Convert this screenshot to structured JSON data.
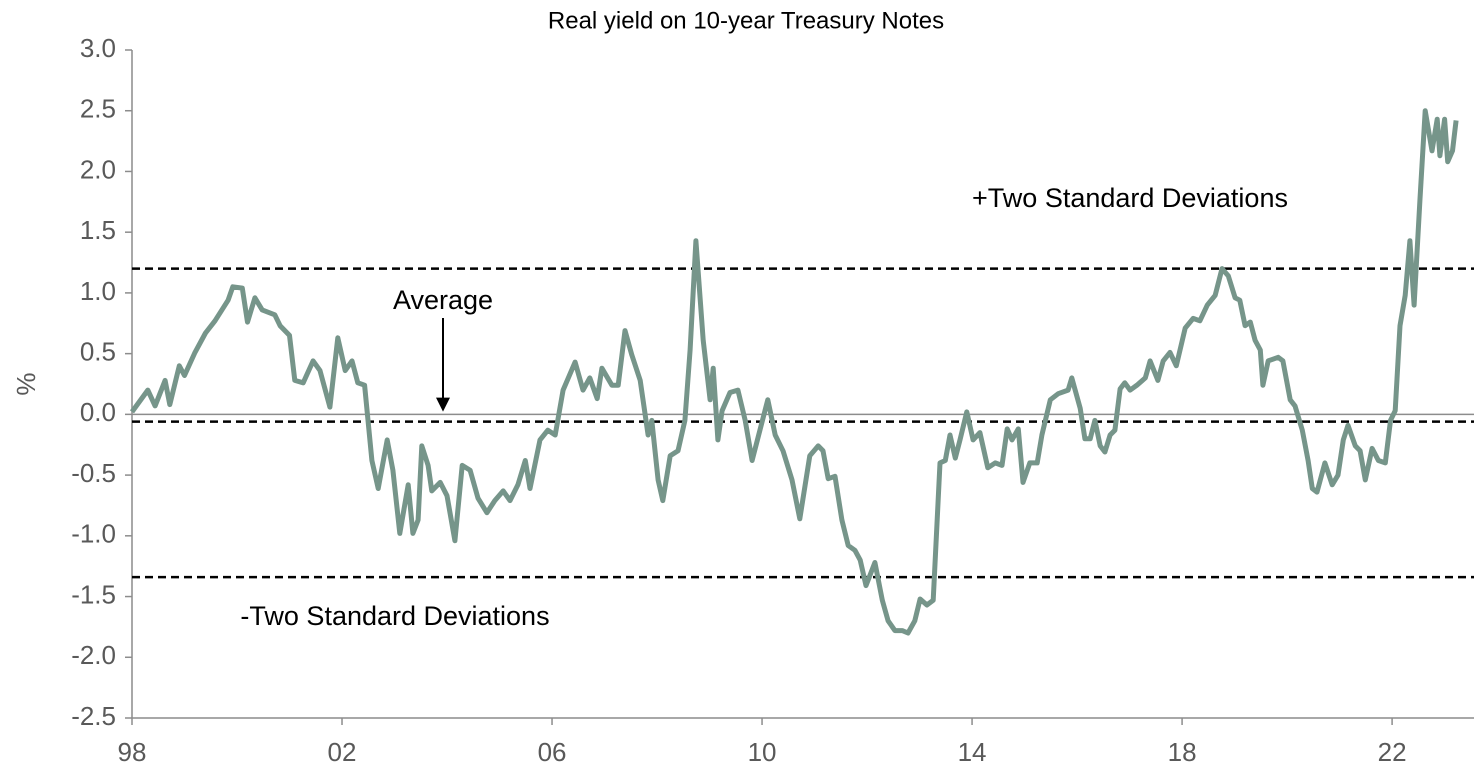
{
  "chart_data": {
    "type": "line",
    "title": "Real yield on 10-year Treasury Notes",
    "y_label": "%",
    "x": [
      1998.0,
      1998.3,
      1998.44,
      1998.63,
      1998.72,
      1998.9,
      1999.0,
      1999.2,
      1999.4,
      1999.58,
      1999.83,
      1999.92,
      2000.1,
      2000.2,
      2000.34,
      2000.48,
      2000.72,
      2000.82,
      2001.0,
      2001.1,
      2001.26,
      2001.45,
      2001.58,
      2001.77,
      2001.92,
      2002.06,
      2002.19,
      2002.3,
      2002.43,
      2002.57,
      2002.69,
      2002.86,
      2002.97,
      2003.1,
      2003.26,
      2003.35,
      2003.45,
      2003.52,
      2003.64,
      2003.71,
      2003.87,
      2004.0,
      2004.15,
      2004.29,
      2004.44,
      2004.59,
      2004.76,
      2004.91,
      2005.07,
      2005.2,
      2005.35,
      2005.49,
      2005.58,
      2005.77,
      2005.92,
      2006.06,
      2006.21,
      2006.44,
      2006.59,
      2006.72,
      2006.86,
      2006.95,
      2007.14,
      2007.26,
      2007.39,
      2007.52,
      2007.68,
      2007.83,
      2007.9,
      2008.02,
      2008.11,
      2008.25,
      2008.4,
      2008.53,
      2008.63,
      2008.74,
      2008.88,
      2009.01,
      2009.07,
      2009.16,
      2009.24,
      2009.39,
      2009.54,
      2009.68,
      2009.81,
      2009.96,
      2010.11,
      2010.25,
      2010.4,
      2010.57,
      2010.72,
      2010.91,
      2011.07,
      2011.16,
      2011.26,
      2011.39,
      2011.52,
      2011.64,
      2011.77,
      2011.87,
      2011.98,
      2012.15,
      2012.29,
      2012.4,
      2012.53,
      2012.67,
      2012.78,
      2012.91,
      2013.01,
      2013.14,
      2013.26,
      2013.39,
      2013.49,
      2013.58,
      2013.68,
      2013.77,
      2013.9,
      2014.02,
      2014.15,
      2014.3,
      2014.44,
      2014.57,
      2014.67,
      2014.76,
      2014.88,
      2014.97,
      2015.1,
      2015.24,
      2015.33,
      2015.49,
      2015.64,
      2015.83,
      2015.9,
      2016.06,
      2016.15,
      2016.25,
      2016.34,
      2016.44,
      2016.53,
      2016.63,
      2016.72,
      2016.82,
      2016.91,
      2017.01,
      2017.14,
      2017.3,
      2017.39,
      2017.54,
      2017.64,
      2017.77,
      2017.89,
      2018.06,
      2018.21,
      2018.34,
      2018.48,
      2018.63,
      2018.76,
      2018.88,
      2019.01,
      2019.1,
      2019.2,
      2019.3,
      2019.39,
      2019.49,
      2019.54,
      2019.64,
      2019.83,
      2019.92,
      2020.06,
      2020.15,
      2020.29,
      2020.4,
      2020.48,
      2020.57,
      2020.72,
      2020.86,
      2020.97,
      2021.07,
      2021.16,
      2021.3,
      2021.39,
      2021.49,
      2021.62,
      2021.74,
      2021.87,
      2021.97,
      2022.06,
      2022.15,
      2022.25,
      2022.34,
      2022.42,
      2022.53,
      2022.63,
      2022.76,
      2022.86,
      2022.91,
      2023.0,
      2023.06,
      2023.15,
      2023.22
    ],
    "series": [
      {
        "color": "#76958a",
        "values": [
          0.02,
          0.2,
          0.07,
          0.28,
          0.08,
          0.4,
          0.32,
          0.51,
          0.67,
          0.77,
          0.94,
          1.05,
          1.04,
          0.76,
          0.96,
          0.86,
          0.82,
          0.73,
          0.65,
          0.28,
          0.26,
          0.44,
          0.36,
          0.06,
          0.63,
          0.36,
          0.44,
          0.26,
          0.24,
          -0.38,
          -0.61,
          -0.21,
          -0.46,
          -0.98,
          -0.58,
          -0.98,
          -0.87,
          -0.26,
          -0.42,
          -0.63,
          -0.56,
          -0.67,
          -1.04,
          -0.42,
          -0.46,
          -0.69,
          -0.81,
          -0.71,
          -0.63,
          -0.71,
          -0.58,
          -0.38,
          -0.61,
          -0.21,
          -0.13,
          -0.17,
          0.2,
          0.43,
          0.2,
          0.3,
          0.13,
          0.38,
          0.24,
          0.24,
          0.69,
          0.49,
          0.28,
          -0.17,
          -0.05,
          -0.54,
          -0.71,
          -0.34,
          -0.3,
          -0.05,
          0.53,
          1.43,
          0.61,
          0.12,
          0.38,
          -0.21,
          0.03,
          0.18,
          0.2,
          -0.05,
          -0.38,
          -0.13,
          0.12,
          -0.17,
          -0.3,
          -0.54,
          -0.86,
          -0.34,
          -0.26,
          -0.3,
          -0.53,
          -0.51,
          -0.87,
          -1.08,
          -1.12,
          -1.2,
          -1.41,
          -1.22,
          -1.53,
          -1.7,
          -1.78,
          -1.78,
          -1.8,
          -1.7,
          -1.52,
          -1.57,
          -1.53,
          -0.4,
          -0.38,
          -0.17,
          -0.36,
          -0.21,
          0.02,
          -0.21,
          -0.15,
          -0.44,
          -0.4,
          -0.42,
          -0.12,
          -0.21,
          -0.12,
          -0.56,
          -0.4,
          -0.4,
          -0.17,
          0.12,
          0.17,
          0.2,
          0.3,
          0.05,
          -0.2,
          -0.2,
          -0.05,
          -0.26,
          -0.31,
          -0.17,
          -0.13,
          0.21,
          0.26,
          0.2,
          0.24,
          0.3,
          0.44,
          0.28,
          0.44,
          0.51,
          0.4,
          0.71,
          0.79,
          0.77,
          0.9,
          0.98,
          1.2,
          1.14,
          0.96,
          0.94,
          0.73,
          0.76,
          0.61,
          0.53,
          0.24,
          0.44,
          0.47,
          0.44,
          0.12,
          0.07,
          -0.13,
          -0.38,
          -0.61,
          -0.64,
          -0.4,
          -0.58,
          -0.5,
          -0.21,
          -0.09,
          -0.26,
          -0.3,
          -0.54,
          -0.28,
          -0.38,
          -0.4,
          -0.05,
          0.03,
          0.73,
          0.98,
          1.43,
          0.9,
          1.76,
          2.5,
          2.17,
          2.43,
          2.13,
          2.43,
          2.08,
          2.17,
          2.42
        ]
      }
    ],
    "hlines": [
      {
        "label": "+Two Standard Deviations",
        "value": 1.2
      },
      {
        "label": "Average",
        "value": -0.06
      },
      {
        "label": "-Two Standard Deviations",
        "value": -1.34
      }
    ],
    "xlim": [
      1998,
      2023.56
    ],
    "xticks": [
      {
        "value": 1998,
        "label": "98"
      },
      {
        "value": 2002,
        "label": "02"
      },
      {
        "value": 2006,
        "label": "06"
      },
      {
        "value": 2010,
        "label": "10"
      },
      {
        "value": 2014,
        "label": "14"
      },
      {
        "value": 2018,
        "label": "18"
      },
      {
        "value": 2022,
        "label": "22"
      }
    ],
    "ylim": [
      -2.5,
      3
    ],
    "yticks": [
      {
        "value": -2.5,
        "label": "-2.5"
      },
      {
        "value": -2,
        "label": "-2.0"
      },
      -1.5,
      {
        "value": -1,
        "label": "-1.0"
      },
      -0.5,
      {
        "value": 0,
        "label": "0.0"
      },
      0.5,
      {
        "value": 1,
        "label": "1.0"
      },
      1.5,
      {
        "value": 2,
        "label": "2.0"
      },
      2.5,
      {
        "value": 3,
        "label": "3.0"
      }
    ]
  }
}
